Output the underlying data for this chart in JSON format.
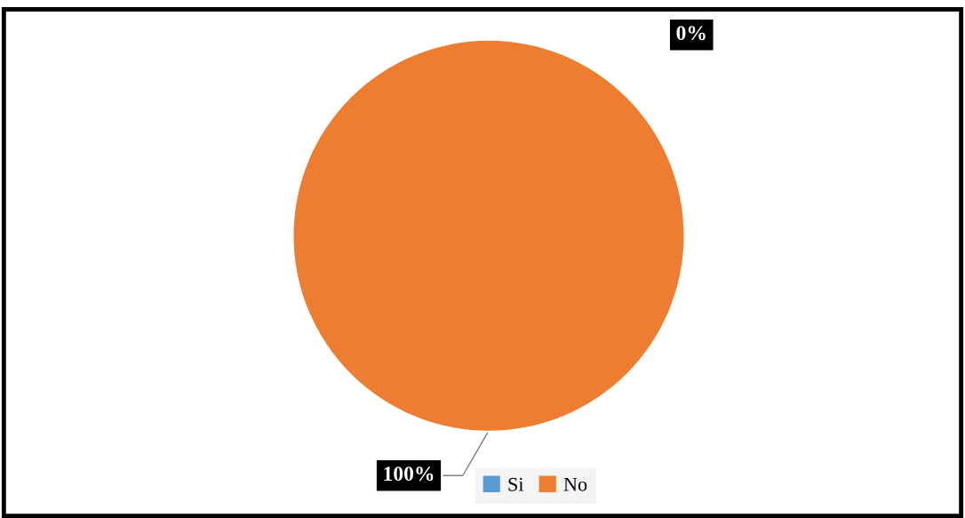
{
  "chart_data": {
    "type": "pie",
    "categories": [
      "Si",
      "No"
    ],
    "values": [
      0,
      100
    ],
    "colors": [
      "#5b9bd5",
      "#ed7d31"
    ],
    "value_labels": [
      "0%",
      "100%"
    ],
    "legend": "bottom"
  }
}
